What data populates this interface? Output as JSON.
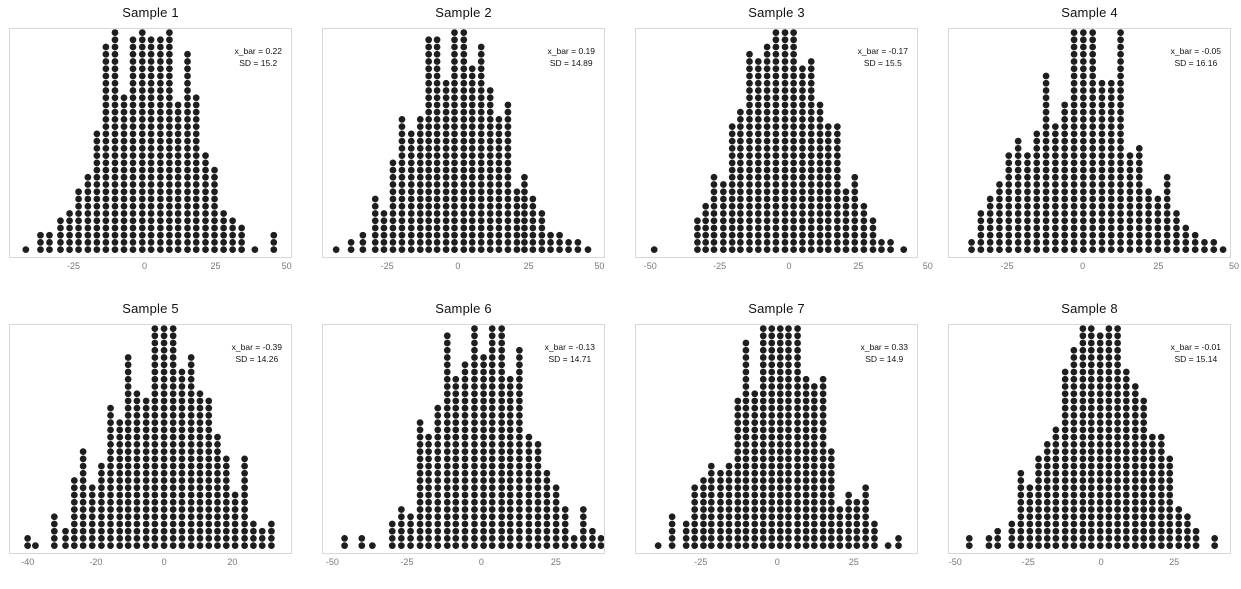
{
  "chart_data": {
    "type": "dotplot_histogram_grid",
    "layout": {
      "rows": 2,
      "cols": 4,
      "grid": true
    },
    "style": {
      "dot_color": "#1e1e1e",
      "panel_border_color": "#d8d8d8",
      "tick_label_color": "#787878",
      "title_color": "#121212",
      "background": "#ffffff"
    },
    "panels": [
      {
        "title": "Sample 1",
        "annotation": {
          "x_bar": 0.22,
          "sd": 15.2,
          "x_bar_label": "x_bar = 0.22",
          "sd_label": "SD = 15.2"
        },
        "xlim": [
          -47.7,
          51.9
        ],
        "xticks": [
          -25,
          0,
          25,
          50
        ],
        "columns": [
          [
            -42.1,
            1
          ],
          [
            -36.9,
            3
          ],
          [
            -33.7,
            3
          ],
          [
            -29.8,
            5
          ],
          [
            -26.6,
            6
          ],
          [
            -23.4,
            9
          ],
          [
            -20.1,
            11
          ],
          [
            -16.9,
            17
          ],
          [
            -13.7,
            29
          ],
          [
            -10.5,
            31
          ],
          [
            -7.3,
            22
          ],
          [
            -4.1,
            30
          ],
          [
            -0.8,
            31
          ],
          [
            2.3,
            30
          ],
          [
            5.6,
            30
          ],
          [
            8.8,
            31
          ],
          [
            11.9,
            21
          ],
          [
            15.2,
            28
          ],
          [
            18.3,
            22
          ],
          [
            21.6,
            14
          ],
          [
            24.8,
            12
          ],
          [
            28.0,
            6
          ],
          [
            31.2,
            5
          ],
          [
            34.4,
            4
          ],
          [
            39.1,
            1
          ],
          [
            45.8,
            3
          ]
        ]
      },
      {
        "title": "Sample 2",
        "annotation": {
          "x_bar": 0.19,
          "sd": 14.89,
          "x_bar_label": "x_bar = 0.19",
          "sd_label": "SD = 14.89"
        },
        "xlim": [
          -48.0,
          52.0
        ],
        "xticks": [
          -25,
          0,
          25,
          50
        ],
        "columns": [
          [
            -43.3,
            1
          ],
          [
            -38.0,
            2
          ],
          [
            -33.8,
            3
          ],
          [
            -29.4,
            8
          ],
          [
            -26.3,
            6
          ],
          [
            -23.1,
            13
          ],
          [
            -19.9,
            19
          ],
          [
            -16.6,
            17
          ],
          [
            -13.4,
            19
          ],
          [
            -10.4,
            30
          ],
          [
            -7.4,
            30
          ],
          [
            -4.2,
            24
          ],
          [
            -1.2,
            31
          ],
          [
            2.1,
            31
          ],
          [
            5.1,
            26
          ],
          [
            8.3,
            29
          ],
          [
            11.5,
            23
          ],
          [
            14.6,
            19
          ],
          [
            17.8,
            21
          ],
          [
            21.0,
            9
          ],
          [
            23.7,
            11
          ],
          [
            26.7,
            8
          ],
          [
            29.9,
            6
          ],
          [
            33.0,
            3
          ],
          [
            36.2,
            3
          ],
          [
            39.4,
            2
          ],
          [
            42.7,
            2
          ],
          [
            46.3,
            1
          ]
        ]
      },
      {
        "title": "Sample 3",
        "annotation": {
          "x_bar": -0.17,
          "sd": 15.5,
          "x_bar_label": "x_bar = -0.17",
          "sd_label": "SD = 15.5"
        },
        "xlim": [
          -55.5,
          46.5
        ],
        "xticks": [
          -50,
          -25,
          0,
          25,
          50
        ],
        "columns": [
          [
            -48.9,
            1
          ],
          [
            -33.2,
            5
          ],
          [
            -30.2,
            7
          ],
          [
            -27.2,
            11
          ],
          [
            -23.8,
            10
          ],
          [
            -20.6,
            18
          ],
          [
            -17.6,
            20
          ],
          [
            -14.3,
            28
          ],
          [
            -11.1,
            27
          ],
          [
            -7.9,
            29
          ],
          [
            -4.7,
            31
          ],
          [
            -1.4,
            31
          ],
          [
            1.7,
            31
          ],
          [
            4.9,
            26
          ],
          [
            8.1,
            27
          ],
          [
            11.3,
            21
          ],
          [
            14.3,
            18
          ],
          [
            17.6,
            18
          ],
          [
            20.7,
            9
          ],
          [
            23.9,
            11
          ],
          [
            27.2,
            7
          ],
          [
            30.5,
            5
          ],
          [
            33.6,
            2
          ],
          [
            36.9,
            2
          ],
          [
            41.7,
            1
          ]
        ]
      },
      {
        "title": "Sample 4",
        "annotation": {
          "x_bar": -0.05,
          "sd": 16.16,
          "x_bar_label": "x_bar = -0.05",
          "sd_label": "SD = 16.16"
        },
        "xlim": [
          -44.5,
          49.0
        ],
        "xticks": [
          -25,
          0,
          25,
          50
        ],
        "columns": [
          [
            -37.0,
            2
          ],
          [
            -33.9,
            6
          ],
          [
            -30.8,
            8
          ],
          [
            -27.7,
            10
          ],
          [
            -24.6,
            14
          ],
          [
            -21.5,
            16
          ],
          [
            -18.4,
            14
          ],
          [
            -15.3,
            17
          ],
          [
            -12.2,
            25
          ],
          [
            -9.1,
            18
          ],
          [
            -6.0,
            21
          ],
          [
            -2.9,
            31
          ],
          [
            0.2,
            31
          ],
          [
            3.3,
            31
          ],
          [
            6.4,
            24
          ],
          [
            9.5,
            24
          ],
          [
            12.6,
            31
          ],
          [
            15.7,
            14
          ],
          [
            18.8,
            15
          ],
          [
            21.9,
            9
          ],
          [
            25.0,
            8
          ],
          [
            28.1,
            11
          ],
          [
            31.2,
            6
          ],
          [
            34.3,
            4
          ],
          [
            37.4,
            3
          ],
          [
            40.5,
            2
          ],
          [
            43.6,
            2
          ],
          [
            46.7,
            1
          ]
        ]
      },
      {
        "title": "Sample 5",
        "annotation": {
          "x_bar": -0.39,
          "sd": 14.26,
          "x_bar_label": "x_bar = -0.39",
          "sd_label": "SD = 14.26"
        },
        "xlim": [
          -45.5,
          37.5
        ],
        "xticks": [
          -40,
          -20,
          0,
          20
        ],
        "columns": [
          [
            -40.3,
            2
          ],
          [
            -38.0,
            1
          ],
          [
            -32.4,
            5
          ],
          [
            -29.1,
            3
          ],
          [
            -26.5,
            10
          ],
          [
            -23.9,
            14
          ],
          [
            -21.2,
            9
          ],
          [
            -18.5,
            12
          ],
          [
            -15.8,
            20
          ],
          [
            -13.1,
            18
          ],
          [
            -10.6,
            27
          ],
          [
            -8.0,
            22
          ],
          [
            -5.3,
            21
          ],
          [
            -2.7,
            31
          ],
          [
            0.0,
            31
          ],
          [
            2.7,
            31
          ],
          [
            5.3,
            25
          ],
          [
            8.0,
            27
          ],
          [
            10.6,
            22
          ],
          [
            13.2,
            21
          ],
          [
            15.8,
            16
          ],
          [
            18.4,
            13
          ],
          [
            21.0,
            8
          ],
          [
            23.8,
            13
          ],
          [
            26.4,
            4
          ],
          [
            29.0,
            3
          ],
          [
            31.7,
            4
          ]
        ]
      },
      {
        "title": "Sample 6",
        "annotation": {
          "x_bar": -0.13,
          "sd": 14.71,
          "x_bar_label": "x_bar = -0.13",
          "sd_label": "SD = 14.71"
        },
        "xlim": [
          -53.5,
          41.5
        ],
        "xticks": [
          -50,
          -25,
          0,
          25
        ],
        "columns": [
          [
            -46.2,
            2
          ],
          [
            -40.4,
            2
          ],
          [
            -36.8,
            1
          ],
          [
            -30.1,
            4
          ],
          [
            -27.0,
            6
          ],
          [
            -23.9,
            5
          ],
          [
            -20.7,
            18
          ],
          [
            -17.8,
            16
          ],
          [
            -14.7,
            20
          ],
          [
            -11.5,
            30
          ],
          [
            -8.6,
            24
          ],
          [
            -5.5,
            26
          ],
          [
            -2.3,
            31
          ],
          [
            0.8,
            27
          ],
          [
            3.7,
            31
          ],
          [
            6.9,
            31
          ],
          [
            9.8,
            24
          ],
          [
            12.9,
            28
          ],
          [
            16.1,
            16
          ],
          [
            19.2,
            15
          ],
          [
            22.2,
            11
          ],
          [
            25.3,
            9
          ],
          [
            28.4,
            6
          ],
          [
            31.4,
            2
          ],
          [
            34.5,
            6
          ],
          [
            37.6,
            3
          ],
          [
            40.5,
            2
          ]
        ]
      },
      {
        "title": "Sample 7",
        "annotation": {
          "x_bar": 0.33,
          "sd": 14.9,
          "x_bar_label": "x_bar = 0.33",
          "sd_label": "SD = 14.9"
        },
        "xlim": [
          -46.5,
          46.0
        ],
        "xticks": [
          -25,
          0,
          25
        ],
        "columns": [
          [
            -39.2,
            1
          ],
          [
            -34.6,
            5
          ],
          [
            -30.0,
            4
          ],
          [
            -27.2,
            9
          ],
          [
            -24.3,
            10
          ],
          [
            -21.7,
            12
          ],
          [
            -18.7,
            11
          ],
          [
            -15.9,
            12
          ],
          [
            -13.0,
            21
          ],
          [
            -10.3,
            29
          ],
          [
            -7.4,
            22
          ],
          [
            -4.6,
            31
          ],
          [
            -1.8,
            31
          ],
          [
            1.0,
            31
          ],
          [
            3.7,
            31
          ],
          [
            6.7,
            31
          ],
          [
            9.5,
            24
          ],
          [
            12.2,
            23
          ],
          [
            15.1,
            24
          ],
          [
            17.8,
            14
          ],
          [
            20.6,
            6
          ],
          [
            23.5,
            8
          ],
          [
            26.2,
            7
          ],
          [
            29.1,
            9
          ],
          [
            32.0,
            4
          ],
          [
            36.5,
            1
          ],
          [
            39.9,
            2
          ]
        ]
      },
      {
        "title": "Sample 8",
        "annotation": {
          "x_bar": -0.01,
          "sd": 15.14,
          "x_bar_label": "x_bar = -0.01",
          "sd_label": "SD = 15.14"
        },
        "xlim": [
          -52.5,
          44.5
        ],
        "xticks": [
          -50,
          -25,
          0,
          25
        ],
        "columns": [
          [
            -45.5,
            2
          ],
          [
            -38.7,
            2
          ],
          [
            -35.7,
            3
          ],
          [
            -30.8,
            4
          ],
          [
            -27.7,
            11
          ],
          [
            -24.6,
            9
          ],
          [
            -21.6,
            13
          ],
          [
            -18.6,
            15
          ],
          [
            -15.6,
            17
          ],
          [
            -12.4,
            25
          ],
          [
            -9.4,
            28
          ],
          [
            -6.3,
            31
          ],
          [
            -3.4,
            31
          ],
          [
            -0.3,
            30
          ],
          [
            2.7,
            31
          ],
          [
            5.7,
            31
          ],
          [
            8.7,
            25
          ],
          [
            11.8,
            23
          ],
          [
            14.7,
            21
          ],
          [
            17.7,
            16
          ],
          [
            20.8,
            16
          ],
          [
            23.7,
            13
          ],
          [
            26.8,
            6
          ],
          [
            29.8,
            5
          ],
          [
            32.8,
            3
          ],
          [
            39.2,
            2
          ]
        ]
      }
    ]
  }
}
